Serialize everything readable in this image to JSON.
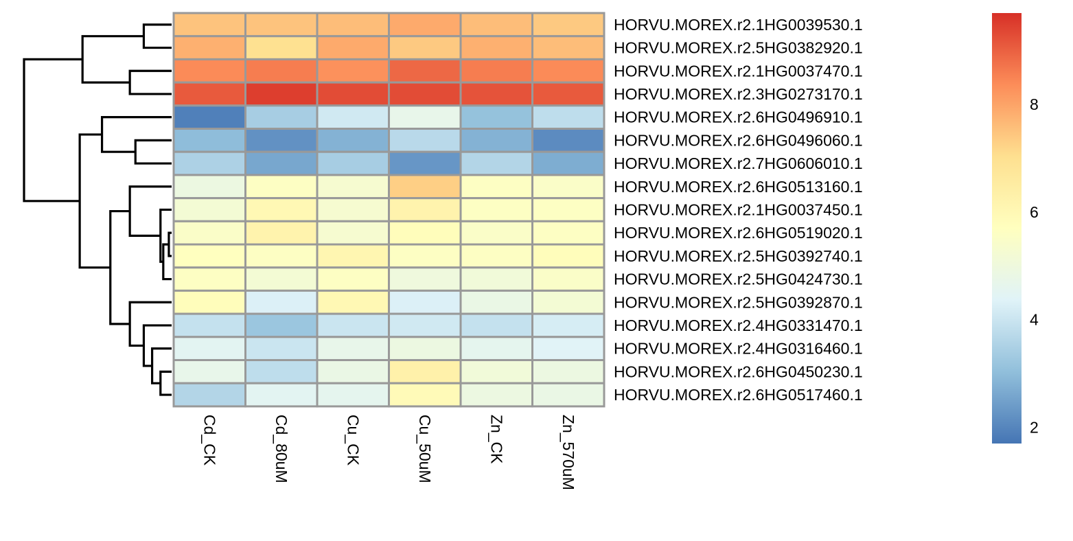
{
  "chart_data": {
    "type": "heatmap",
    "title": "",
    "xlabel": "",
    "ylabel": "",
    "columns": [
      "Cd_CK",
      "Cd_80uM",
      "Cu_CK",
      "Cu_50uM",
      "Zn_CK",
      "Zn_570uM"
    ],
    "rows": [
      "HORVU.MOREX.r2.1HG0039530.1",
      "HORVU.MOREX.r2.5HG0382920.1",
      "HORVU.MOREX.r2.1HG0037470.1",
      "HORVU.MOREX.r2.3HG0273170.1",
      "HORVU.MOREX.r2.6HG0496910.1",
      "HORVU.MOREX.r2.6HG0496060.1",
      "HORVU.MOREX.r2.7HG0606010.1",
      "HORVU.MOREX.r2.6HG0513160.1",
      "HORVU.MOREX.r2.1HG0037450.1",
      "HORVU.MOREX.r2.6HG0519020.1",
      "HORVU.MOREX.r2.5HG0392740.1",
      "HORVU.MOREX.r2.5HG0424730.1",
      "HORVU.MOREX.r2.5HG0392870.1",
      "HORVU.MOREX.r2.4HG0331470.1",
      "HORVU.MOREX.r2.4HG0316460.1",
      "HORVU.MOREX.r2.6HG0450230.1",
      "HORVU.MOREX.r2.6HG0517460.1"
    ],
    "values": [
      [
        7.5,
        7.5,
        7.6,
        7.9,
        7.6,
        7.4
      ],
      [
        7.8,
        7.0,
        7.9,
        7.4,
        7.8,
        7.6
      ],
      [
        8.4,
        8.6,
        8.3,
        8.9,
        8.6,
        8.4
      ],
      [
        9.1,
        9.5,
        9.3,
        9.3,
        9.2,
        9.1
      ],
      [
        1.9,
        3.4,
        4.1,
        4.7,
        3.1,
        3.8
      ],
      [
        3.0,
        2.2,
        2.8,
        3.7,
        2.8,
        2.1
      ],
      [
        3.5,
        2.6,
        3.4,
        2.3,
        3.6,
        2.7
      ],
      [
        4.9,
        5.6,
        5.3,
        7.3,
        5.6,
        5.5
      ],
      [
        5.2,
        6.0,
        5.3,
        6.2,
        5.6,
        5.6
      ],
      [
        5.5,
        6.2,
        5.3,
        5.8,
        5.5,
        5.6
      ],
      [
        5.7,
        5.6,
        6.1,
        5.6,
        5.6,
        5.8
      ],
      [
        5.6,
        5.2,
        5.6,
        5.0,
        5.1,
        5.5
      ],
      [
        5.8,
        4.3,
        6.0,
        4.3,
        4.8,
        5.2
      ],
      [
        3.9,
        3.2,
        4.0,
        4.1,
        3.9,
        4.2
      ],
      [
        4.5,
        4.0,
        4.7,
        4.9,
        4.6,
        4.4
      ],
      [
        4.7,
        3.8,
        4.8,
        6.3,
        5.1,
        4.9
      ],
      [
        3.6,
        4.5,
        4.6,
        5.9,
        4.9,
        4.8
      ]
    ],
    "colorbar": {
      "min": 1.7,
      "max": 9.7,
      "ticks": [
        2,
        4,
        6,
        8
      ],
      "colors": [
        "#4575B4",
        "#91BFDB",
        "#E0F3F8",
        "#FFFFBF",
        "#FEE090",
        "#FC8D59",
        "#D73027"
      ]
    },
    "cell_border_color": "#999999",
    "grid": true,
    "legend": "right",
    "row_dendrogram": {
      "branches": [
        [
          0,
          1,
          1.0
        ],
        [
          2,
          3,
          1.5
        ],
        [
          -1,
          -2,
          3.2
        ],
        [
          5,
          6,
          1.3
        ],
        [
          4,
          -4,
          2.5
        ],
        [
          9,
          10,
          0.1
        ],
        [
          11,
          -6,
          0.3
        ],
        [
          8,
          -7,
          0.4
        ],
        [
          7,
          -8,
          1.5
        ],
        [
          15,
          16,
          0.4
        ],
        [
          14,
          -10,
          0.7
        ],
        [
          13,
          -11,
          1.0
        ],
        [
          12,
          -12,
          1.5
        ],
        [
          -9,
          -13,
          2.2
        ],
        [
          -5,
          -14,
          3.3
        ],
        [
          -3,
          -15,
          5.3
        ]
      ],
      "max_height": 5.3
    }
  }
}
